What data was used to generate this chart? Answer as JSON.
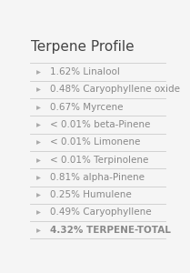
{
  "title": "Terpene Profile",
  "items": [
    {
      "label": "1.62% Linalool",
      "bold": false
    },
    {
      "label": "0.48% Caryophyllene oxide",
      "bold": false
    },
    {
      "label": "0.67% Myrcene",
      "bold": false
    },
    {
      "label": "< 0.01% beta-Pinene",
      "bold": false
    },
    {
      "label": "< 0.01% Limonene",
      "bold": false
    },
    {
      "label": "< 0.01% Terpinolene",
      "bold": false
    },
    {
      "label": "0.81% alpha-Pinene",
      "bold": false
    },
    {
      "label": "0.25% Humulene",
      "bold": false
    },
    {
      "label": "0.49% Caryophyllene",
      "bold": false
    },
    {
      "label": "4.32% TERPENE-TOTAL",
      "bold": true
    }
  ],
  "bg_color": "#f5f5f5",
  "title_color": "#444444",
  "text_color": "#888888",
  "arrow_color": "#aaaaaa",
  "divider_color": "#cccccc",
  "title_fontsize": 11,
  "item_fontsize": 7.5,
  "bold_fontsize": 7.5
}
